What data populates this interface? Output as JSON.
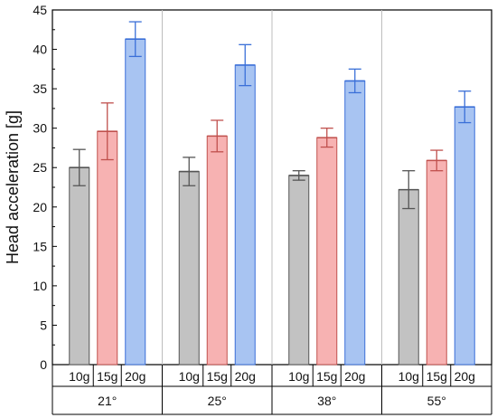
{
  "chart_data": {
    "type": "bar",
    "ylabel": "Head acceleration [g]",
    "xlabel": "",
    "ylim": [
      0,
      45
    ],
    "yticks": [
      0,
      5,
      10,
      15,
      20,
      25,
      30,
      35,
      40,
      45
    ],
    "grid": "vertical separators between groups",
    "groups": [
      "21°",
      "25°",
      "38°",
      "55°"
    ],
    "subcategories": [
      "10g",
      "15g",
      "20g"
    ],
    "series": [
      {
        "name": "10g",
        "values": [
          25.0,
          24.5,
          24.0,
          22.2
        ],
        "error": [
          2.3,
          1.8,
          0.6,
          2.4
        ],
        "fill": "#c2c2c2",
        "stroke": "#555555"
      },
      {
        "name": "15g",
        "values": [
          29.6,
          29.0,
          28.8,
          25.9
        ],
        "error": [
          3.6,
          2.0,
          1.2,
          1.3
        ],
        "fill": "#f7b2b2",
        "stroke": "#c0504d"
      },
      {
        "name": "20g",
        "values": [
          41.3,
          38.0,
          36.0,
          32.7
        ],
        "error": [
          2.2,
          2.6,
          1.5,
          2.0
        ],
        "fill": "#a8c4f2",
        "stroke": "#3a6fd8"
      }
    ]
  }
}
